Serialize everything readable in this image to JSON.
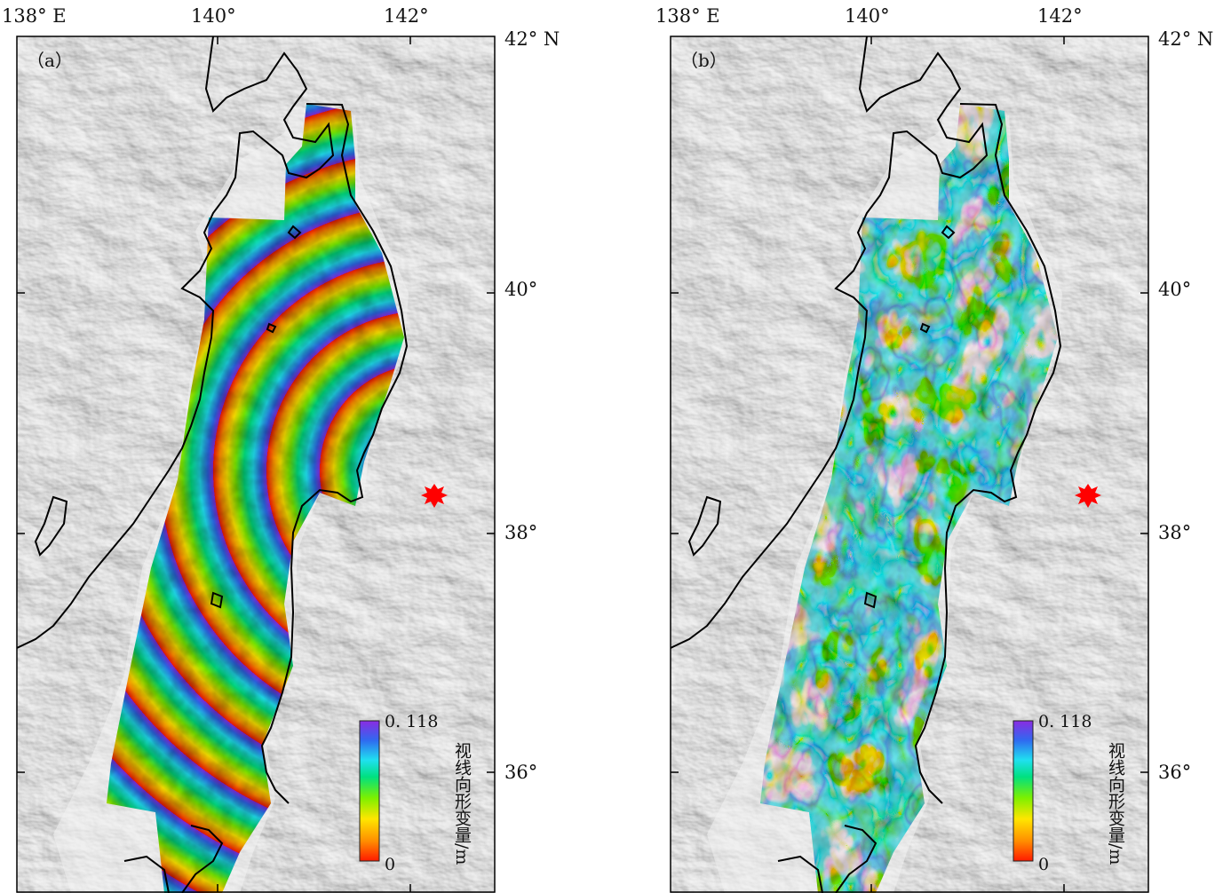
{
  "panels": [
    {
      "label": "（a）",
      "top_lon": [
        "138° E",
        "140°",
        "142°"
      ],
      "right_lat": [
        "42° N",
        "40°",
        "38°",
        "36°"
      ],
      "colorbar": {
        "max": "0. 118",
        "min": "0",
        "title": "视线向形变量/m"
      },
      "pattern": "concentric-fringes"
    },
    {
      "label": "（b）",
      "top_lon": [
        "138° E",
        "140°",
        "142°"
      ],
      "right_lat": [
        "42° N",
        "40°",
        "38°",
        "36°"
      ],
      "colorbar": {
        "max": "0. 118",
        "min": "0",
        "title": "视线向形变量/m"
      },
      "pattern": "residual-noise"
    }
  ],
  "colors": {
    "colormap": [
      "#ff1a00",
      "#ff8c00",
      "#ffe600",
      "#7cf000",
      "#00e080",
      "#20e0f0",
      "#2f6af0",
      "#8a2be2"
    ],
    "epicenter": "#ff0000",
    "coast": "#000000",
    "terrain_base": "#e2e2e2"
  },
  "epicenter_icon": "red-star-epicenter-icon"
}
